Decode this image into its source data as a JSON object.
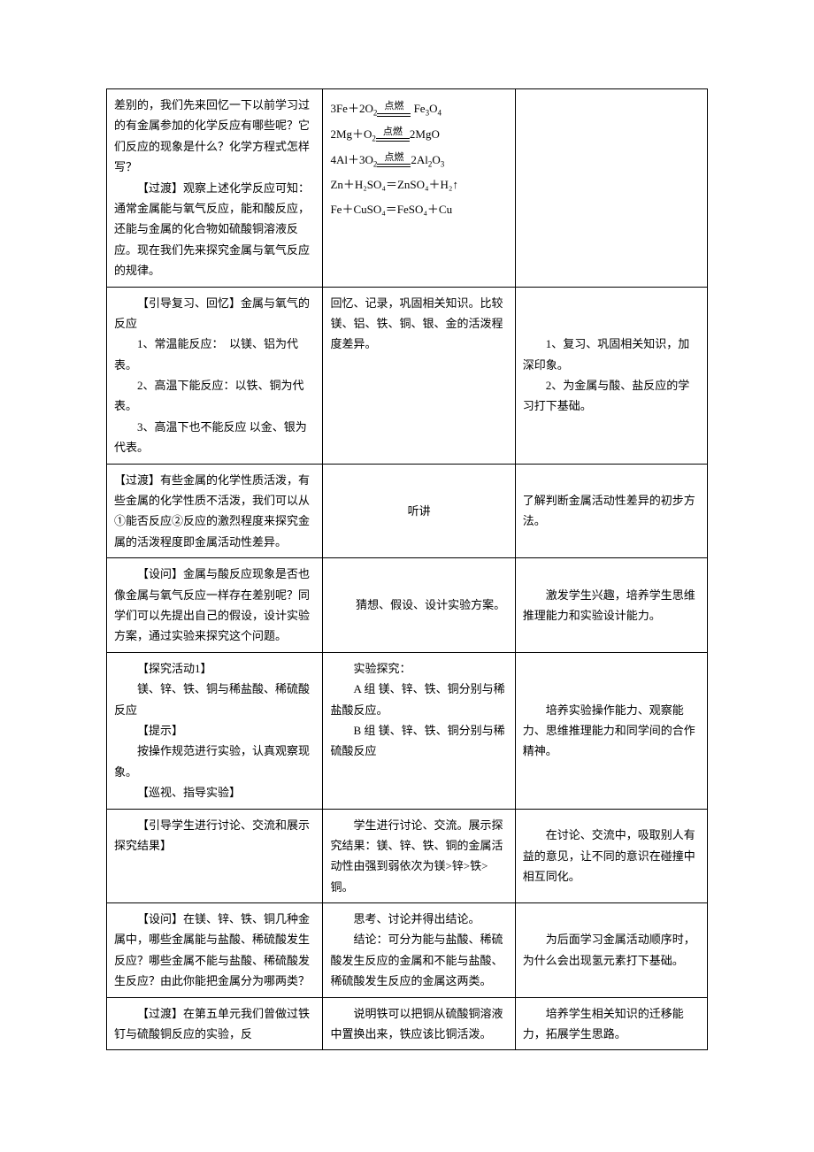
{
  "rows": [
    {
      "c1": [
        {
          "text": "差别的，我们先来回忆一下以前学习过的有金属参加的化学反应有哪些呢？它们反应的现象是什么？化学方程式怎样写？",
          "indent": false
        },
        {
          "text": "【过渡】观察上述化学反应可知：通常金属能与氧气反应，能和酸反应，还能与金属的化合物如硫酸铜溶液反应。现在我们先来探究金属与氧气反应的规律。",
          "indent": true
        }
      ],
      "c2_type": "equations",
      "c2_eq": {
        "cond": "点燃",
        "lines": [
          {
            "left": "3Fe＋2O",
            "lsub": "2",
            "right": " Fe",
            "rsub": "3",
            "right2": "O",
            "rsub2": "4",
            "cond": true
          },
          {
            "left": "2Mg＋O",
            "lsub": "2",
            "right": "2MgO",
            "rsub": "",
            "right2": "",
            "rsub2": "",
            "cond": true
          },
          {
            "left": "4Al＋3O",
            "lsub": "2",
            "right": "2Al",
            "rsub": "2",
            "right2": "O",
            "rsub2": "3",
            "cond": true
          },
          {
            "plain": "Zn＋H₂SO₄＝ZnSO₄＋H₂↑"
          },
          {
            "plain": "Fe＋CuSO₄＝FeSO₄＋Cu"
          }
        ]
      },
      "c3": []
    },
    {
      "c1": [
        {
          "text": "【引导复习、回忆】金属与氧气的反应",
          "indent": true
        },
        {
          "text": "1、常温能反应：　以镁、铝为代表。",
          "indent": true
        },
        {
          "text": "2、高温下能反应：以铁、铜为代表。",
          "indent": true
        },
        {
          "text": "3、高温下也不能反应 以金、银为代表。",
          "indent": true
        }
      ],
      "c2": [
        {
          "text": "回忆、记录，巩固相关知识。比较镁、铝、铁、铜、银、金的活泼程度差异。",
          "indent": false
        }
      ],
      "c3": [
        {
          "text": "1、复习、巩固相关知识，加深印象。",
          "indent": true
        },
        {
          "text": "2、为金属与酸、盐反应的学习打下基础。",
          "indent": true
        }
      ]
    },
    {
      "c1": [
        {
          "text": "【过渡】有些金属的化学性质活泼，有些金属的化学性质不活泼，我们可以从①能否反应②反应的激烈程度来探究金属的活泼程度即金属活动性差异。",
          "indent": false
        }
      ],
      "c2": [
        {
          "text": "听讲",
          "indent": false,
          "center": true
        }
      ],
      "c3": [
        {
          "text": "了解判断金属活动性差异的初步方法。",
          "indent": false
        }
      ]
    },
    {
      "c1": [
        {
          "text": "【设问】金属与酸反应现象是否也像金属与氧气反应一样存在差别呢？同学们可以先提出自己的假设，设计实验方案，通过实验来探究这个问题。",
          "indent": true
        }
      ],
      "c2": [
        {
          "text": "猜想、假设、设计实验方案。",
          "indent": true,
          "center": true
        }
      ],
      "c3": [
        {
          "text": "激发学生兴趣，培养学生思维推理能力和实验设计能力。",
          "indent": true
        }
      ]
    },
    {
      "c1": [
        {
          "text": "【探究活动1】",
          "indent": true
        },
        {
          "text": "镁、锌、铁、铜与稀盐酸、稀硫酸反应",
          "indent": true
        },
        {
          "text": "【提示】",
          "indent": true
        },
        {
          "text": "按操作规范进行实验，认真观察现象。",
          "indent": true
        },
        {
          "text": "【巡视、指导实验】",
          "indent": true
        }
      ],
      "c2": [
        {
          "text": "实验探究：",
          "indent": true
        },
        {
          "text": "A 组 镁、锌、铁、铜分别与稀盐酸反应。",
          "indent": true
        },
        {
          "text": "B 组 镁、锌、铁、铜分别与稀硫酸反应",
          "indent": true
        }
      ],
      "c3": [
        {
          "text": "培养实验操作能力、观察能力、思维推理能力和同学间的合作精神。",
          "indent": true
        }
      ]
    },
    {
      "c1": [
        {
          "text": "【引导学生进行讨论、交流和展示探究结果】",
          "indent": true
        }
      ],
      "c2": [
        {
          "text": "学生进行讨论、交流。展示探究结果：镁、锌、铁、铜的金属活动性由强到弱依次为镁>锌>铁>铜。",
          "indent": true
        }
      ],
      "c3": [
        {
          "text": "在讨论、交流中，吸取别人有益的意见，让不同的意识在碰撞中相互同化。",
          "indent": true
        }
      ]
    },
    {
      "c1": [
        {
          "text": "【设问】在镁、锌、铁、铜几种金属中，哪些金属能与盐酸、稀硫酸发生反应？哪些金属不能与盐酸、稀硫酸发生反应？由此你能把金属分为哪两类？",
          "indent": true
        }
      ],
      "c2": [
        {
          "text": "思考、讨论并得出结论。",
          "indent": true
        },
        {
          "text": "结论：可分为能与盐酸、稀硫酸发生反应的金属和不能与盐酸、稀硫酸发生反应的金属这两类。",
          "indent": true
        }
      ],
      "c3": [
        {
          "text": "为后面学习金属活动顺序时，为什么会出现氢元素打下基础。",
          "indent": true
        }
      ]
    },
    {
      "c1": [
        {
          "text": "【过渡】在第五单元我们曾做过铁钉与硫酸铜反应的实验，反",
          "indent": true
        }
      ],
      "c2": [
        {
          "text": "说明铁可以把铜从硫酸铜溶液中置换出来，铁应该比铜活泼。",
          "indent": true
        }
      ],
      "c3": [
        {
          "text": "培养学生相关知识的迁移能力，拓展学生思路。",
          "indent": true
        }
      ]
    }
  ]
}
